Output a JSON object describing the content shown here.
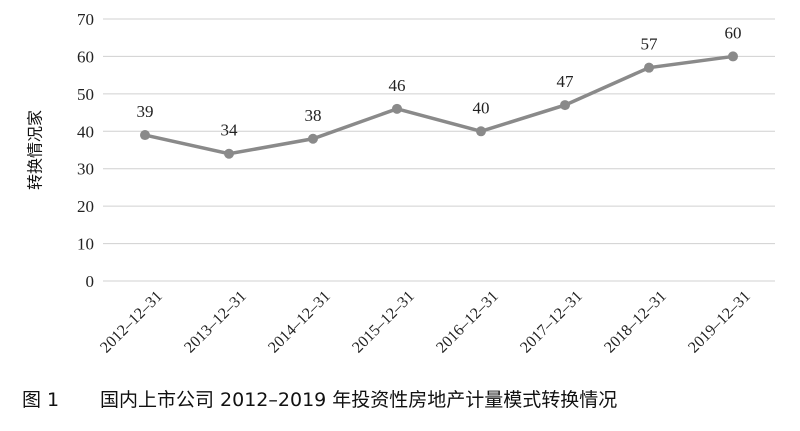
{
  "chart_data": {
    "type": "line",
    "figure_label": "图 1",
    "title": "国内上市公司 2012–2019 年投资性房地产计量模式转换情况",
    "y_label": "转换情况家",
    "categories": [
      "2012–12–31",
      "2013–12–31",
      "2014–12–31",
      "2015–12–31",
      "2016–12–31",
      "2017–12–31",
      "2018–12–31",
      "2019–12–31"
    ],
    "values": [
      39,
      34,
      38,
      46,
      40,
      47,
      57,
      60
    ],
    "color": "#8a8a8a",
    "ylim": [
      0,
      70
    ],
    "yticks": [
      0,
      10,
      20,
      30,
      40,
      50,
      60,
      70
    ],
    "grid": true
  }
}
